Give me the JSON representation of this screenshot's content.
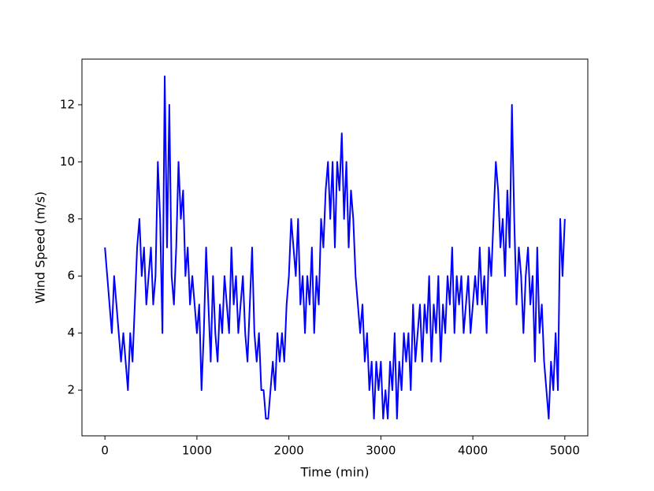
{
  "chart_data": {
    "type": "line",
    "x_label": "Time (min)",
    "y_label": "Wind Speed (m/s)",
    "color": "#0000ff",
    "x": [
      0,
      25,
      50,
      75,
      100,
      125,
      150,
      175,
      200,
      225,
      250,
      275,
      300,
      325,
      350,
      375,
      400,
      425,
      450,
      475,
      500,
      525,
      550,
      575,
      600,
      625,
      650,
      675,
      700,
      725,
      750,
      775,
      800,
      825,
      850,
      875,
      900,
      925,
      950,
      975,
      1000,
      1025,
      1050,
      1075,
      1100,
      1125,
      1150,
      1175,
      1200,
      1225,
      1250,
      1275,
      1300,
      1325,
      1350,
      1375,
      1400,
      1425,
      1450,
      1475,
      1500,
      1525,
      1550,
      1575,
      1600,
      1625,
      1650,
      1675,
      1700,
      1725,
      1750,
      1775,
      1800,
      1825,
      1850,
      1875,
      1900,
      1925,
      1950,
      1975,
      2000,
      2025,
      2050,
      2075,
      2100,
      2125,
      2150,
      2175,
      2200,
      2225,
      2250,
      2275,
      2300,
      2325,
      2350,
      2375,
      2400,
      2425,
      2450,
      2475,
      2500,
      2525,
      2550,
      2575,
      2600,
      2625,
      2650,
      2675,
      2700,
      2725,
      2750,
      2775,
      2800,
      2825,
      2850,
      2875,
      2900,
      2925,
      2950,
      2975,
      3000,
      3025,
      3050,
      3075,
      3100,
      3125,
      3150,
      3175,
      3200,
      3225,
      3250,
      3275,
      3300,
      3325,
      3350,
      3375,
      3400,
      3425,
      3450,
      3475,
      3500,
      3525,
      3550,
      3575,
      3600,
      3625,
      3650,
      3675,
      3700,
      3725,
      3750,
      3775,
      3800,
      3825,
      3850,
      3875,
      3900,
      3925,
      3950,
      3975,
      4000,
      4025,
      4050,
      4075,
      4100,
      4125,
      4150,
      4175,
      4200,
      4225,
      4250,
      4275,
      4300,
      4325,
      4350,
      4375,
      4400,
      4425,
      4450,
      4475,
      4500,
      4525,
      4550,
      4575,
      4600,
      4625,
      4650,
      4675,
      4700,
      4725,
      4750,
      4775,
      4800,
      4825,
      4850,
      4875,
      4900,
      4925,
      4950,
      4975,
      5000
    ],
    "values": [
      7,
      6,
      5,
      4,
      6,
      5,
      4,
      3,
      4,
      3,
      2,
      4,
      3,
      5,
      7,
      8,
      6,
      7,
      5,
      6,
      7,
      5,
      6,
      10,
      8,
      4,
      13,
      7,
      12,
      6,
      5,
      7,
      10,
      8,
      9,
      6,
      7,
      5,
      6,
      5,
      4,
      5,
      2,
      4,
      7,
      5,
      3,
      6,
      4,
      3,
      5,
      4,
      6,
      5,
      4,
      7,
      5,
      6,
      4,
      5,
      6,
      4,
      3,
      5,
      7,
      4,
      3,
      4,
      2,
      2,
      1,
      1,
      2,
      3,
      2,
      4,
      3,
      4,
      3,
      5,
      6,
      8,
      7,
      6,
      8,
      5,
      6,
      4,
      6,
      5,
      7,
      4,
      6,
      5,
      8,
      7,
      9,
      10,
      8,
      10,
      7,
      10,
      9,
      11,
      8,
      10,
      7,
      9,
      8,
      6,
      5,
      4,
      5,
      3,
      4,
      2,
      3,
      1,
      3,
      2,
      3,
      1,
      2,
      1,
      3,
      2,
      4,
      1,
      3,
      2,
      4,
      3,
      4,
      2,
      5,
      3,
      4,
      5,
      3,
      5,
      4,
      6,
      3,
      5,
      4,
      6,
      3,
      5,
      4,
      6,
      5,
      7,
      4,
      6,
      5,
      6,
      4,
      5,
      6,
      4,
      5,
      6,
      5,
      7,
      5,
      6,
      4,
      7,
      6,
      8,
      10,
      9,
      7,
      8,
      6,
      9,
      7,
      12,
      8,
      5,
      7,
      6,
      4,
      6,
      7,
      5,
      6,
      3,
      7,
      4,
      5,
      3,
      2,
      1,
      3,
      2,
      4,
      2,
      8,
      6,
      8
    ],
    "xlim": [
      -250,
      5250
    ],
    "xticks": [
      0,
      1000,
      2000,
      3000,
      4000,
      5000
    ],
    "ylim": [
      0.4,
      13.6
    ],
    "yticks": [
      2,
      4,
      6,
      8,
      10,
      12
    ]
  }
}
